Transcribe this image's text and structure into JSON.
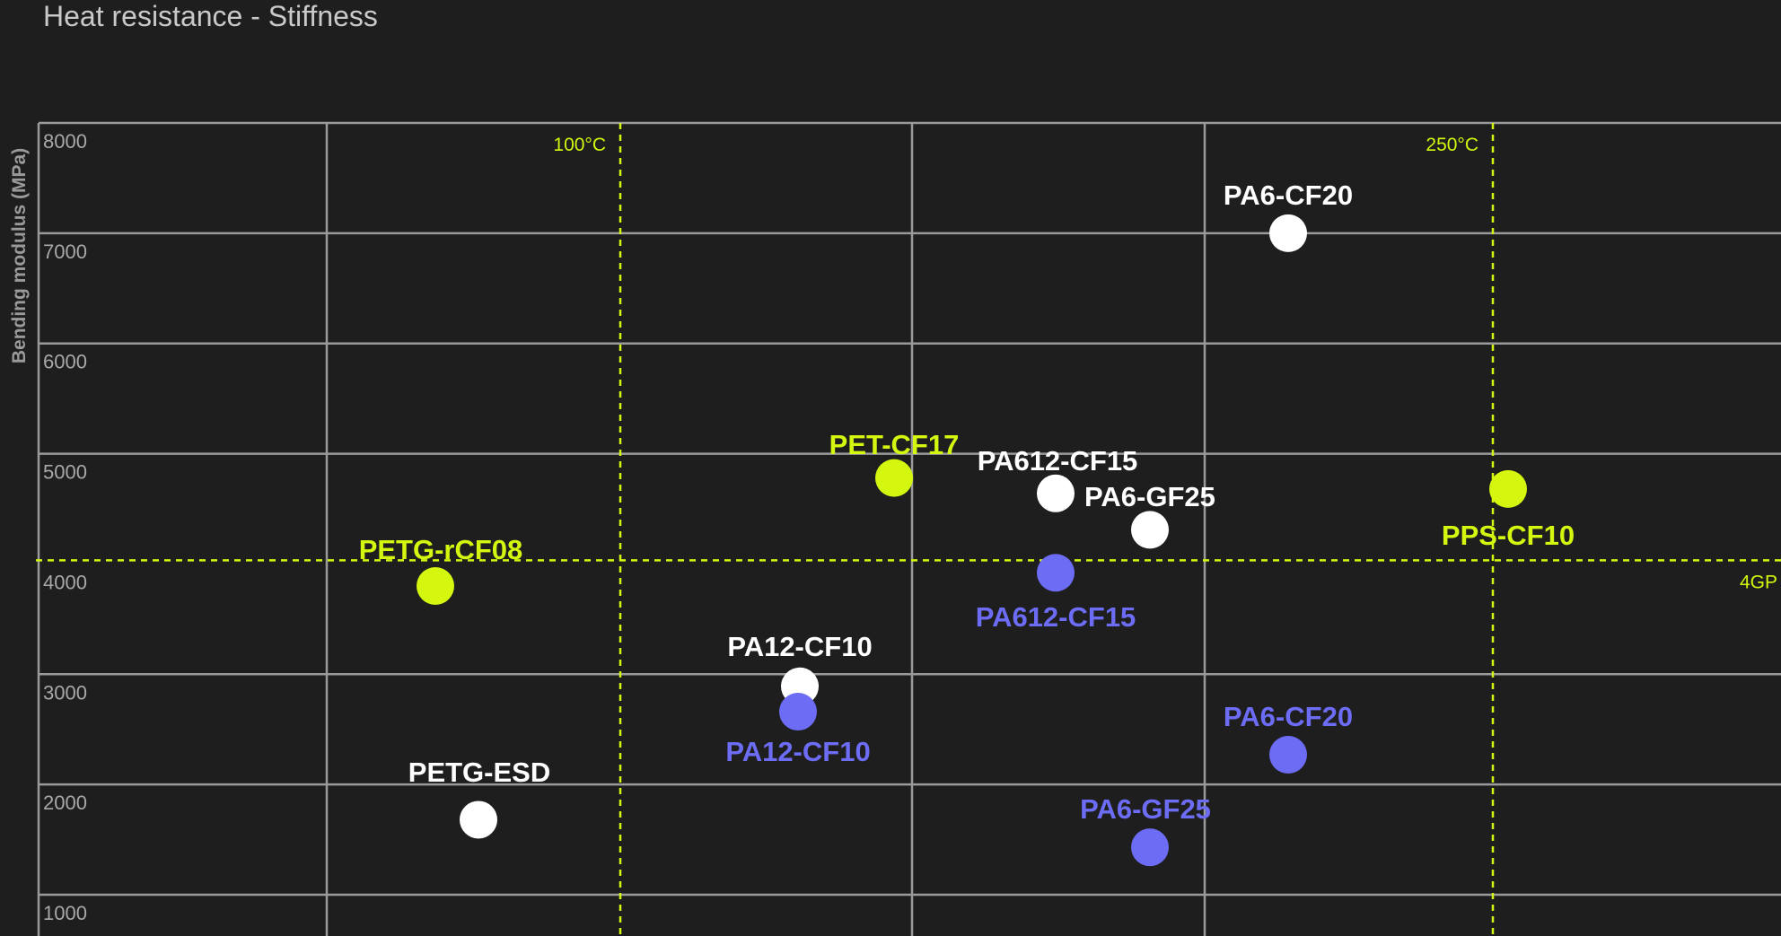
{
  "chart_data": {
    "type": "scatter",
    "title": "Heat resistance - Stiffness",
    "xlabel": "",
    "ylabel": "Bending modulus (MPa)",
    "ylim": [
      1000,
      8000
    ],
    "yticks": [
      "8000",
      "7000",
      "6000",
      "5000",
      "4000",
      "3000",
      "2000",
      "1000"
    ],
    "grid": true,
    "colors": {
      "background": "#1e1e1e",
      "grid": "#9a9a9a",
      "tick": "#a8a8a8",
      "white": "#ffffff",
      "yellow": "#d4f60f",
      "blue": "#6c6cf5"
    },
    "reference_lines": [
      {
        "axis": "x",
        "label": "100°C"
      },
      {
        "axis": "x",
        "label": "250°C"
      },
      {
        "axis": "y",
        "value": 4000,
        "label": "4GP"
      }
    ],
    "points": [
      {
        "label": "PA6-CF20",
        "color": "white",
        "y": 7000
      },
      {
        "label": "PET-CF17",
        "color": "yellow",
        "y": 4780
      },
      {
        "label": "PA612-CF15",
        "color": "white",
        "y": 4640
      },
      {
        "label": "PA6-GF25",
        "color": "white",
        "y": 4310
      },
      {
        "label": "PPS-CF10",
        "color": "yellow",
        "y": 4680
      },
      {
        "label": "PETG-rCF08",
        "color": "yellow",
        "y": 3800
      },
      {
        "label": "PA612-CF15",
        "color": "blue",
        "y": 3920
      },
      {
        "label": "PA12-CF10",
        "color": "white",
        "y": 2890
      },
      {
        "label": "PA12-CF10",
        "color": "blue",
        "y": 2660
      },
      {
        "label": "PA6-CF20",
        "color": "blue",
        "y": 2270
      },
      {
        "label": "PETG-ESD",
        "color": "white",
        "y": 1680
      },
      {
        "label": "PA6-GF25",
        "color": "blue",
        "y": 1430
      }
    ]
  }
}
